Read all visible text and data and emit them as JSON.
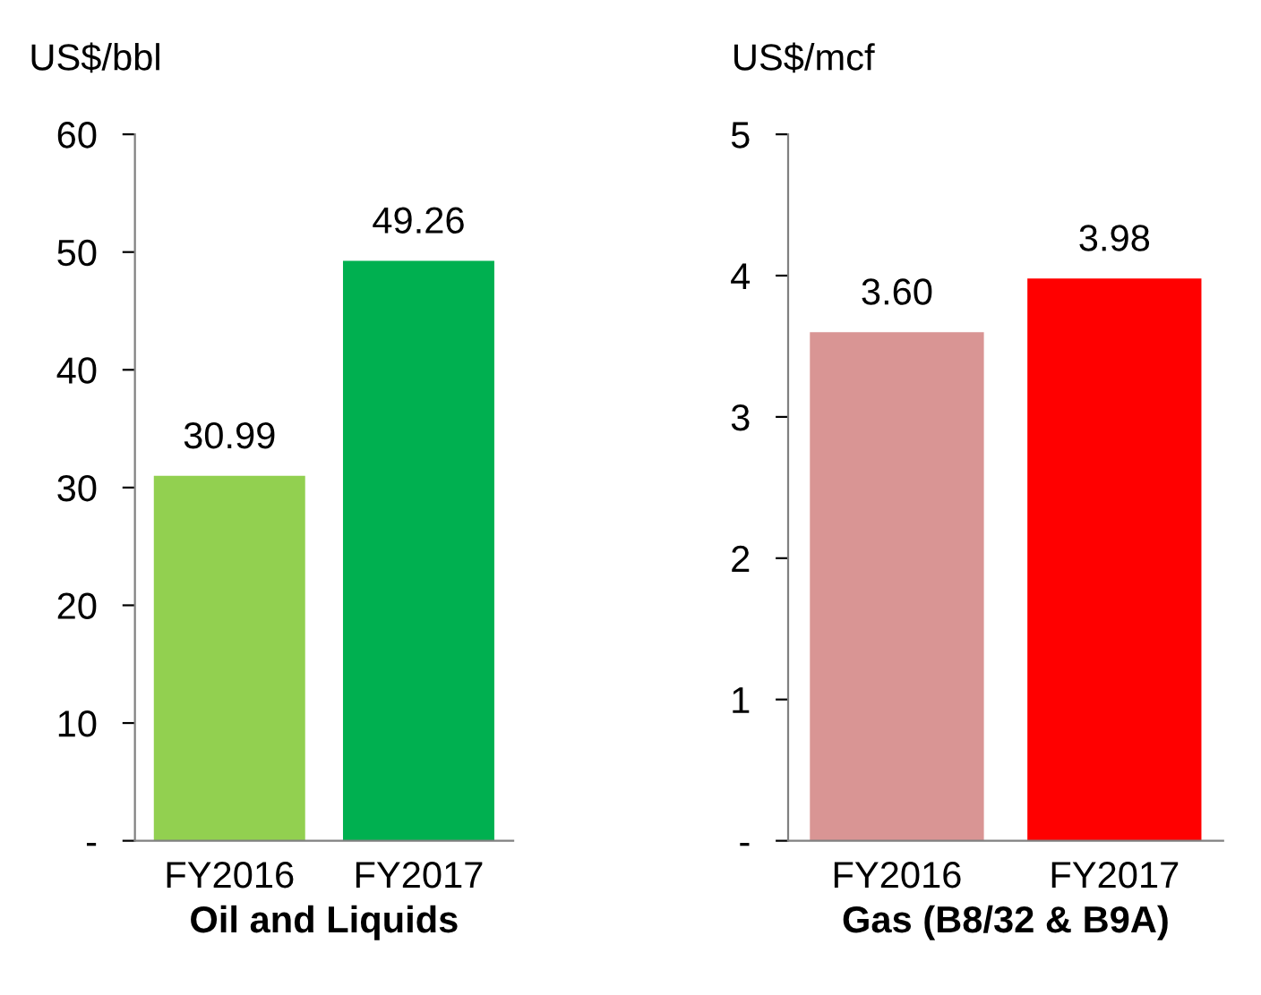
{
  "chart_data": [
    {
      "type": "bar",
      "xlabel": "Oil and Liquids",
      "ylabel": "US$/bbl",
      "categories": [
        "FY2016",
        "FY2017"
      ],
      "values": [
        30.99,
        49.26
      ],
      "colors": [
        "#92d050",
        "#00b050"
      ],
      "value_labels": [
        "30.99",
        "49.26"
      ],
      "ylim": [
        0,
        60
      ],
      "yticks": [
        {
          "value": 0,
          "label": "-"
        },
        10,
        20,
        30,
        40,
        50,
        60
      ],
      "grid": false,
      "legend": false
    },
    {
      "type": "bar",
      "xlabel": "Gas (B8/32 & B9A)",
      "ylabel": "US$/mcf",
      "categories": [
        "FY2016",
        "FY2017"
      ],
      "values": [
        3.6,
        3.98
      ],
      "colors": [
        "#d99594",
        "#ff0000"
      ],
      "value_labels": [
        "3.60",
        "3.98"
      ],
      "ylim": [
        0,
        5
      ],
      "yticks": [
        {
          "value": 0,
          "label": "-"
        },
        1,
        2,
        3,
        4,
        5
      ],
      "grid": false,
      "legend": false
    }
  ]
}
